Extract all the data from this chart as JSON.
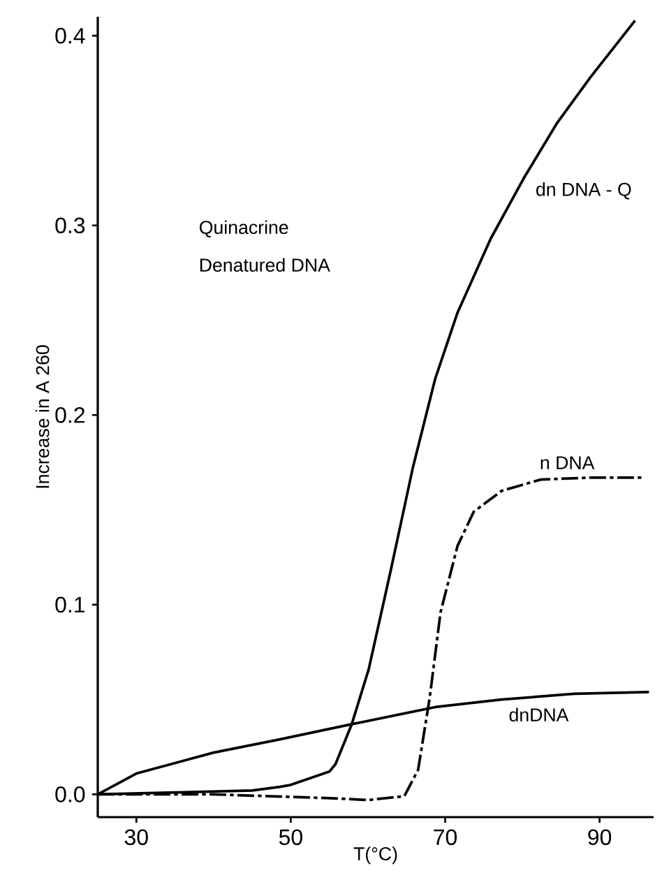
{
  "chart_data": {
    "type": "line",
    "xlabel": "T(°C)",
    "ylabel": "Increase in A 260",
    "annotations": [
      "Quinacrine",
      "Denatured DNA"
    ],
    "xlim": [
      25,
      97
    ],
    "ylim": [
      -0.012,
      0.41
    ],
    "xticks": [
      30,
      50,
      70,
      90
    ],
    "yticks": [
      {
        "value": 0,
        "label": "0.0"
      },
      0.1,
      0.2,
      0.3,
      0.4
    ],
    "series": [
      {
        "name": "dn DNA - Q",
        "color": "#000000",
        "line_style": "solid",
        "x": [
          25,
          35,
          45,
          48.6,
          50,
          55,
          55.8,
          57.9,
          60.1,
          63,
          65.8,
          68.7,
          71.6,
          75.9,
          80.2,
          84.5,
          88.8,
          94.6
        ],
        "values": [
          0,
          0.001,
          0.002,
          0.004,
          0.005,
          0.012,
          0.016,
          0.037,
          0.066,
          0.119,
          0.172,
          0.219,
          0.254,
          0.293,
          0.325,
          0.354,
          0.378,
          0.408
        ]
      },
      {
        "name": "n DNA",
        "color": "#000000",
        "line_style": "dashed",
        "x": [
          25,
          40,
          55,
          60,
          64.7,
          66.5,
          68,
          69.4,
          71.6,
          73.7,
          77.3,
          82.4,
          88.8,
          95.7
        ],
        "values": [
          0,
          0,
          -0.002,
          -0.003,
          -0.001,
          0.013,
          0.051,
          0.096,
          0.131,
          0.149,
          0.16,
          0.166,
          0.167,
          0.167
        ]
      },
      {
        "name": "dnDNA",
        "color": "#000000",
        "line_style": "solid",
        "x": [
          25,
          30,
          40,
          48.6,
          57.9,
          68.7,
          77.3,
          86.7,
          96.4
        ],
        "values": [
          0,
          0.011,
          0.022,
          0.029,
          0.037,
          0.046,
          0.05,
          0.053,
          0.054
        ]
      }
    ]
  }
}
